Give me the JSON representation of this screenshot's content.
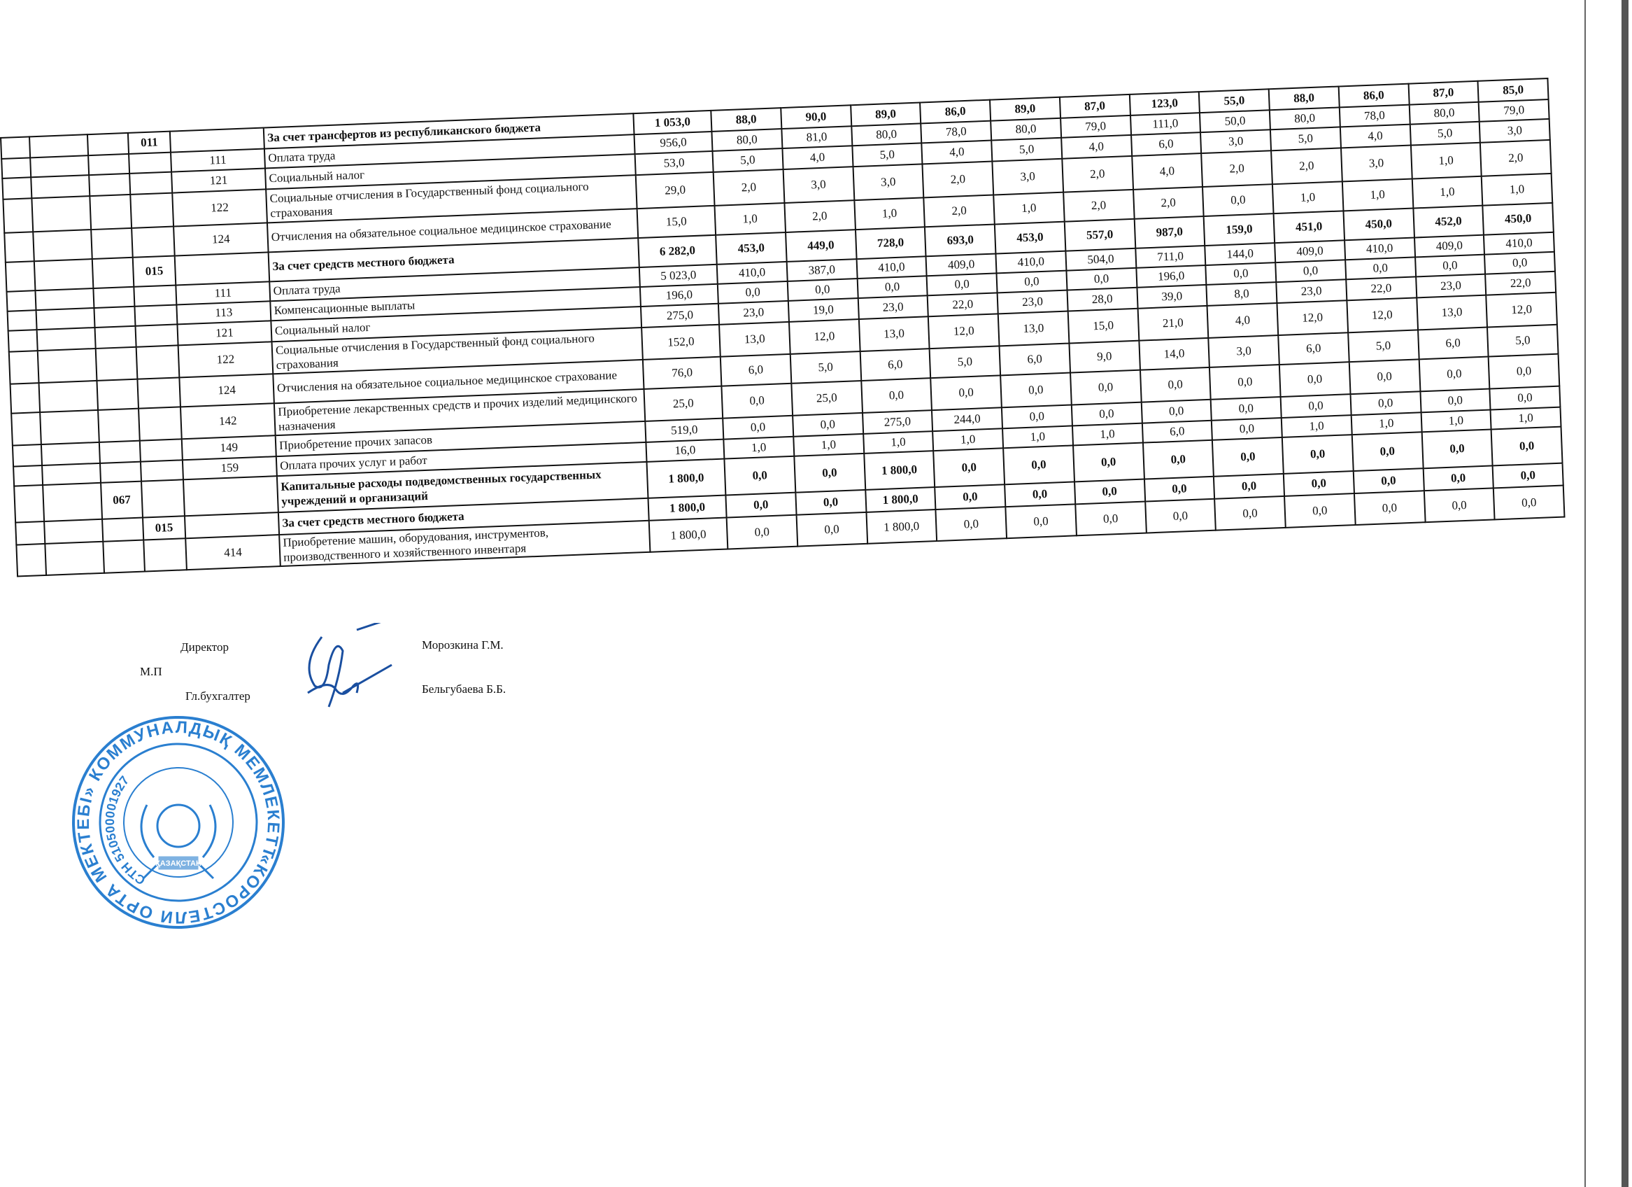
{
  "table": {
    "rows": [
      {
        "prog": "",
        "subprog": "011",
        "spec": "",
        "desc": "За счет трансфертов из республиканского бюджета",
        "bold": true,
        "total": "1 053,0",
        "months": [
          "88,0",
          "90,0",
          "89,0",
          "86,0",
          "89,0",
          "87,0",
          "123,0",
          "55,0",
          "88,0",
          "86,0",
          "87,0",
          "85,0"
        ]
      },
      {
        "prog": "",
        "subprog": "",
        "spec": "111",
        "desc": "Оплата труда",
        "bold": false,
        "total": "956,0",
        "months": [
          "80,0",
          "81,0",
          "80,0",
          "78,0",
          "80,0",
          "79,0",
          "111,0",
          "50,0",
          "80,0",
          "78,0",
          "80,0",
          "79,0"
        ]
      },
      {
        "prog": "",
        "subprog": "",
        "spec": "121",
        "desc": "Социальный налог",
        "bold": false,
        "total": "53,0",
        "months": [
          "5,0",
          "4,0",
          "5,0",
          "4,0",
          "5,0",
          "4,0",
          "6,0",
          "3,0",
          "5,0",
          "4,0",
          "5,0",
          "3,0"
        ]
      },
      {
        "prog": "",
        "subprog": "",
        "spec": "122",
        "desc": "Социальные отчисления в Государственный фонд социального страхования",
        "bold": false,
        "total": "29,0",
        "months": [
          "2,0",
          "3,0",
          "3,0",
          "2,0",
          "3,0",
          "2,0",
          "4,0",
          "2,0",
          "2,0",
          "3,0",
          "1,0",
          "2,0"
        ]
      },
      {
        "prog": "",
        "subprog": "",
        "spec": "124",
        "desc": "Отчисления на обязательное социальное медицинское страхование",
        "bold": false,
        "total": "15,0",
        "months": [
          "1,0",
          "2,0",
          "1,0",
          "2,0",
          "1,0",
          "2,0",
          "2,0",
          "0,0",
          "1,0",
          "1,0",
          "1,0",
          "1,0"
        ]
      },
      {
        "prog": "",
        "subprog": "015",
        "spec": "",
        "desc": "За счет средств местного бюджета",
        "bold": true,
        "total": "6 282,0",
        "months": [
          "453,0",
          "449,0",
          "728,0",
          "693,0",
          "453,0",
          "557,0",
          "987,0",
          "159,0",
          "451,0",
          "450,0",
          "452,0",
          "450,0"
        ]
      },
      {
        "prog": "",
        "subprog": "",
        "spec": "111",
        "desc": "Оплата труда",
        "bold": false,
        "total": "5 023,0",
        "months": [
          "410,0",
          "387,0",
          "410,0",
          "409,0",
          "410,0",
          "504,0",
          "711,0",
          "144,0",
          "409,0",
          "410,0",
          "409,0",
          "410,0"
        ]
      },
      {
        "prog": "",
        "subprog": "",
        "spec": "113",
        "desc": "Компенсационные выплаты",
        "bold": false,
        "total": "196,0",
        "months": [
          "0,0",
          "0,0",
          "0,0",
          "0,0",
          "0,0",
          "0,0",
          "196,0",
          "0,0",
          "0,0",
          "0,0",
          "0,0",
          "0,0"
        ]
      },
      {
        "prog": "",
        "subprog": "",
        "spec": "121",
        "desc": "Социальный налог",
        "bold": false,
        "total": "275,0",
        "months": [
          "23,0",
          "19,0",
          "23,0",
          "22,0",
          "23,0",
          "28,0",
          "39,0",
          "8,0",
          "23,0",
          "22,0",
          "23,0",
          "22,0"
        ]
      },
      {
        "prog": "",
        "subprog": "",
        "spec": "122",
        "desc": "Социальные отчисления в Государственный фонд социального страхования",
        "bold": false,
        "total": "152,0",
        "months": [
          "13,0",
          "12,0",
          "13,0",
          "12,0",
          "13,0",
          "15,0",
          "21,0",
          "4,0",
          "12,0",
          "12,0",
          "13,0",
          "12,0"
        ]
      },
      {
        "prog": "",
        "subprog": "",
        "spec": "124",
        "desc": "Отчисления на обязательное социальное медицинское страхование",
        "bold": false,
        "total": "76,0",
        "months": [
          "6,0",
          "5,0",
          "6,0",
          "5,0",
          "6,0",
          "9,0",
          "14,0",
          "3,0",
          "6,0",
          "5,0",
          "6,0",
          "5,0"
        ]
      },
      {
        "prog": "",
        "subprog": "",
        "spec": "142",
        "desc": "Приобретение лекарственных средств и прочих изделий медицинского назначения",
        "bold": false,
        "total": "25,0",
        "months": [
          "0,0",
          "25,0",
          "0,0",
          "0,0",
          "0,0",
          "0,0",
          "0,0",
          "0,0",
          "0,0",
          "0,0",
          "0,0",
          "0,0"
        ]
      },
      {
        "prog": "",
        "subprog": "",
        "spec": "149",
        "desc": "Приобретение прочих запасов",
        "bold": false,
        "total": "519,0",
        "months": [
          "0,0",
          "0,0",
          "275,0",
          "244,0",
          "0,0",
          "0,0",
          "0,0",
          "0,0",
          "0,0",
          "0,0",
          "0,0",
          "0,0"
        ]
      },
      {
        "prog": "",
        "subprog": "",
        "spec": "159",
        "desc": "Оплата прочих услуг и работ",
        "bold": false,
        "total": "16,0",
        "months": [
          "1,0",
          "1,0",
          "1,0",
          "1,0",
          "1,0",
          "1,0",
          "6,0",
          "0,0",
          "1,0",
          "1,0",
          "1,0",
          "1,0"
        ]
      },
      {
        "prog": "067",
        "subprog": "",
        "spec": "",
        "desc": "Капитальные расходы подведомственных государственных учреждений и организаций",
        "bold": true,
        "total": "1 800,0",
        "months": [
          "0,0",
          "0,0",
          "1 800,0",
          "0,0",
          "0,0",
          "0,0",
          "0,0",
          "0,0",
          "0,0",
          "0,0",
          "0,0",
          "0,0"
        ]
      },
      {
        "prog": "",
        "subprog": "015",
        "spec": "",
        "desc": "За счет средств местного бюджета",
        "bold": true,
        "total": "1 800,0",
        "months": [
          "0,0",
          "0,0",
          "1 800,0",
          "0,0",
          "0,0",
          "0,0",
          "0,0",
          "0,0",
          "0,0",
          "0,0",
          "0,0",
          "0,0"
        ]
      },
      {
        "prog": "",
        "subprog": "",
        "spec": "414",
        "desc": "Приобретение машин, оборудования, инструментов, производственного и хозяйственного инвентаря",
        "bold": false,
        "total": "1 800,0",
        "months": [
          "0,0",
          "0,0",
          "1 800,0",
          "0,0",
          "0,0",
          "0,0",
          "0,0",
          "0,0",
          "0,0",
          "0,0",
          "0,0",
          "0,0"
        ]
      }
    ]
  },
  "signatures": {
    "director_label": "Директор",
    "director_name": "Морозкина Г.М.",
    "stamp_place_label": "М.П",
    "accountant_label": "Гл.бухгалтер",
    "accountant_name": "Бельгубаева Б.Б."
  },
  "stamp": {
    "text": "«КОРОСТЕЛИ ОРТА МЕКТЕБІ» КОММУНАЛДЫҚ МЕМЛЕКЕТТІК МЕКЕМЕСІ *",
    "inner_text": "СТН 510500001927",
    "emblem_text": "ҚАЗАҚСТАН",
    "color": "#2a7fd0"
  }
}
